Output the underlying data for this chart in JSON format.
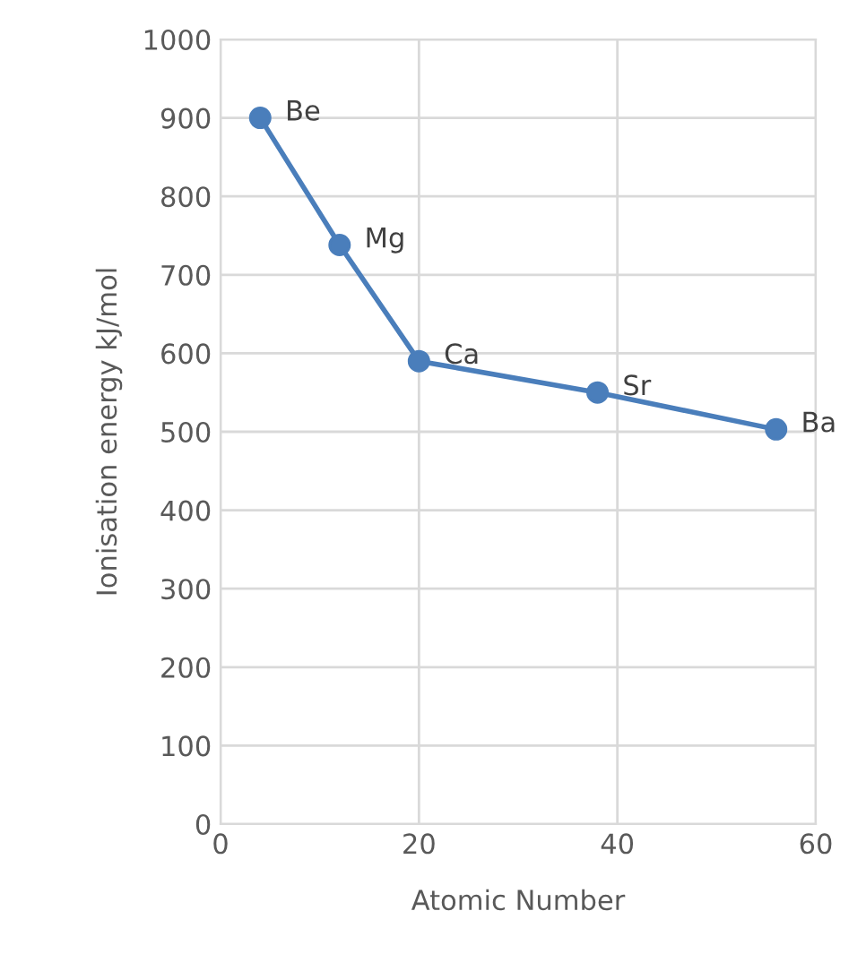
{
  "chart_data": {
    "type": "line",
    "xlabel": "Atomic Number",
    "ylabel": "Ionisation energy kJ/mol",
    "x": [
      4,
      12,
      20,
      38,
      56
    ],
    "series": [
      {
        "color": "#4a7ebb",
        "values": [
          900,
          738,
          590,
          550,
          503
        ]
      }
    ],
    "marker": "circle",
    "line_style": "solid",
    "annotations": [
      {
        "text": "Be",
        "x": 4,
        "y": 900
      },
      {
        "text": "Mg",
        "x": 12,
        "y": 738
      },
      {
        "text": "Ca",
        "x": 20,
        "y": 590
      },
      {
        "text": "Sr",
        "x": 38,
        "y": 550
      },
      {
        "text": "Ba",
        "x": 56,
        "y": 503
      }
    ],
    "xlim": [
      0,
      60
    ],
    "xticks": [
      0,
      20,
      40,
      60
    ],
    "ylim": [
      0,
      1000
    ],
    "yticks": [
      0,
      100,
      200,
      300,
      400,
      500,
      600,
      700,
      800,
      900,
      1000
    ],
    "grid": true
  }
}
